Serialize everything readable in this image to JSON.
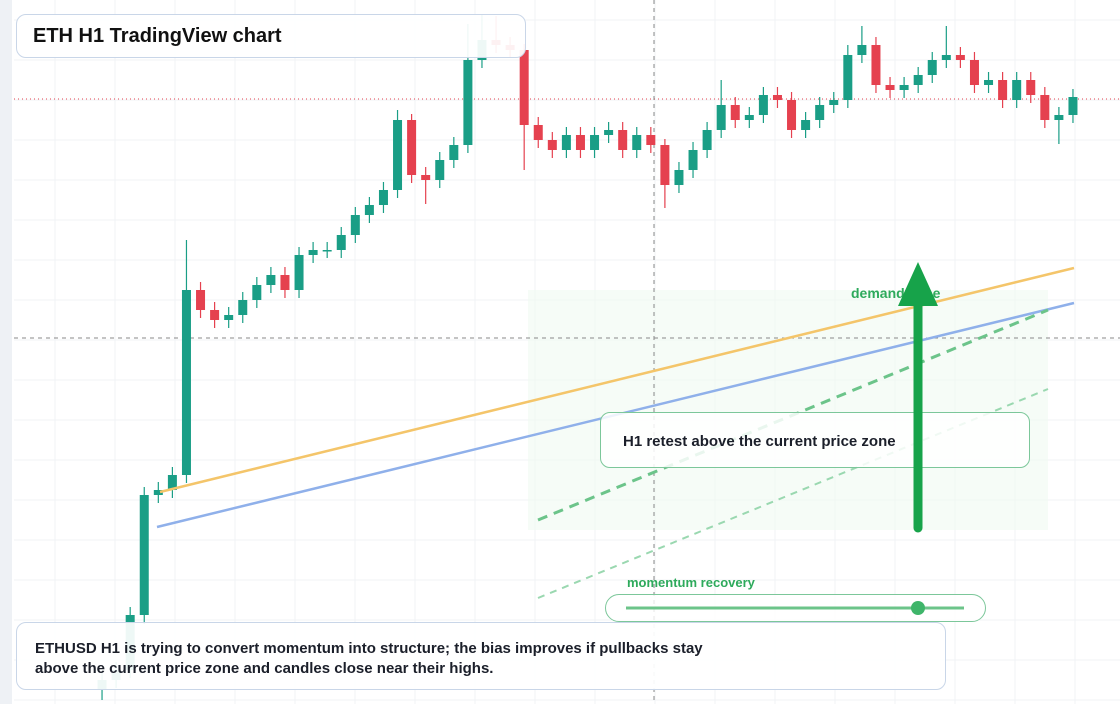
{
  "chart_data": {
    "type": "candlestick",
    "title": "ETH H1 TradingView chart",
    "annotations": [
      "demand zone",
      "H1 retest above the current price zone",
      "momentum recovery"
    ],
    "note": "ETHUSD H1 is trying to convert momentum into structure; the bias improves if pullbacks stay above the current price zone and candles close near their highs.",
    "up_color": "#1a9e86",
    "down_color": "#e5414f",
    "ylim": [
      0,
      704
    ],
    "open": [
      14,
      24,
      34,
      89,
      209,
      214,
      229,
      414,
      394,
      384,
      389,
      404,
      419,
      429,
      414,
      449,
      454,
      454,
      469,
      489,
      499,
      514,
      584,
      529,
      524,
      544,
      559,
      644,
      664,
      659,
      654,
      579,
      564,
      554,
      569,
      554,
      569,
      574,
      554,
      569,
      559,
      519,
      534,
      554,
      574,
      599,
      584,
      589,
      609,
      604,
      574,
      584,
      599,
      604,
      649,
      659,
      619,
      614,
      619,
      629,
      644,
      649,
      644,
      619,
      624,
      604,
      624,
      609,
      584,
      589
    ],
    "high": [
      32,
      42,
      97,
      217,
      222,
      237,
      464,
      422,
      402,
      397,
      412,
      427,
      437,
      437,
      457,
      462,
      462,
      477,
      497,
      507,
      522,
      594,
      590,
      537,
      552,
      567,
      680,
      690,
      688,
      667,
      660,
      587,
      572,
      577,
      577,
      577,
      582,
      582,
      577,
      577,
      565,
      542,
      562,
      582,
      624,
      607,
      597,
      617,
      617,
      612,
      592,
      607,
      612,
      659,
      678,
      667,
      627,
      627,
      637,
      652,
      678,
      657,
      652,
      632,
      632,
      632,
      632,
      617,
      597,
      615
    ],
    "low": [
      4,
      16,
      26,
      80,
      201,
      206,
      221,
      386,
      376,
      376,
      381,
      396,
      411,
      406,
      406,
      441,
      446,
      446,
      461,
      481,
      491,
      506,
      521,
      500,
      516,
      536,
      551,
      636,
      651,
      646,
      534,
      556,
      546,
      546,
      546,
      546,
      561,
      546,
      546,
      551,
      496,
      511,
      526,
      546,
      566,
      576,
      576,
      581,
      596,
      566,
      566,
      576,
      591,
      596,
      641,
      611,
      606,
      606,
      611,
      621,
      636,
      636,
      611,
      611,
      596,
      596,
      601,
      576,
      560,
      581
    ],
    "close": [
      24,
      34,
      89,
      209,
      214,
      229,
      414,
      394,
      384,
      389,
      404,
      419,
      429,
      414,
      449,
      454,
      454,
      469,
      489,
      499,
      514,
      584,
      529,
      524,
      544,
      559,
      644,
      664,
      659,
      654,
      579,
      564,
      554,
      569,
      554,
      569,
      574,
      554,
      569,
      559,
      519,
      534,
      554,
      574,
      599,
      584,
      589,
      609,
      604,
      574,
      584,
      599,
      604,
      649,
      659,
      619,
      614,
      619,
      629,
      644,
      649,
      644,
      619,
      624,
      604,
      624,
      609,
      584,
      589,
      607
    ]
  }
}
